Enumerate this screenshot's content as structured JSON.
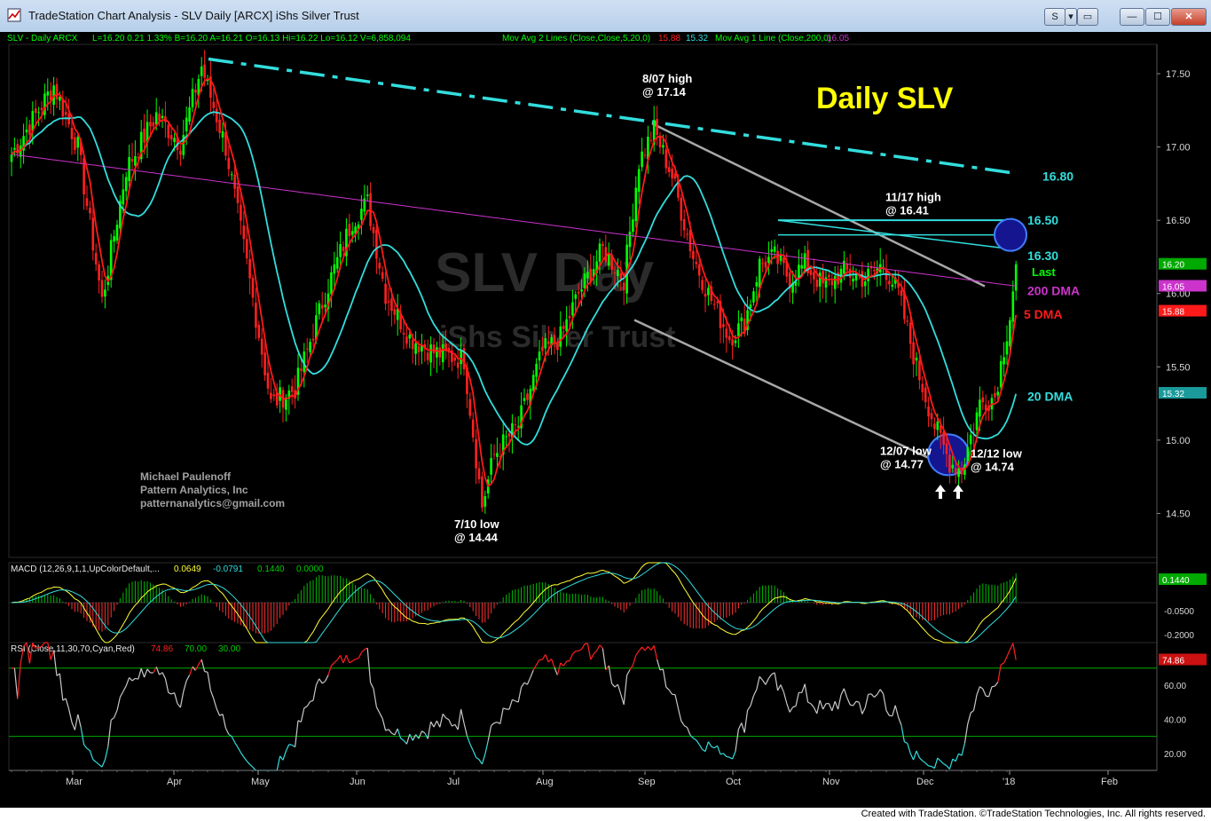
{
  "window": {
    "title": "TradeStation Chart Analysis - SLV Daily [ARCX] iShs Silver Trust",
    "buttons": {
      "style": "S",
      "dropdown": "▾",
      "flag": "▭",
      "minimize": "—",
      "maximize": "☐",
      "close": "✕"
    }
  },
  "header": {
    "symbol_text": "SLV - Daily  ARCX",
    "quote_text": "L=16.20  0.21  1.33%  B=16.20  A=16.21  O=16.13  Hi=16.22  Lo=16.12  V=6,858,094",
    "ma2_label": "Mov Avg 2 Lines (Close,Close,5,20,0)",
    "ma2_v1": "15.88",
    "ma2_v2": "15.32",
    "ma1_label": "Mov Avg 1 Line (Close,200,0)",
    "ma1_v": "16.05"
  },
  "colors": {
    "up": "#00ff00",
    "down": "#ff2020",
    "ma5": "#ff1a1a",
    "ma20": "#33dddd",
    "ma200": "#cc33cc",
    "trendline": "#33dddd",
    "channel": "#a8a8a8",
    "circle_fill": "#151590",
    "circle_stroke": "#3f7fff",
    "annotation": "#ffffff",
    "title": "#ffff00",
    "macd_line": "#ffff33",
    "macd_signal": "#33dddd",
    "rsi": "#c8c8c8",
    "rsi_ob": "#ff2020",
    "rsi_os": "#33dddd",
    "ref_line": "#00aa00"
  },
  "watermark": {
    "symbol": "SLV Day",
    "name": "iShs Silver Trust"
  },
  "chart_data": {
    "type": "candlestick",
    "title": "Daily SLV",
    "price_axis": {
      "range": [
        14.2,
        17.7
      ],
      "ticks": [
        "17.50",
        "17.00",
        "16.50",
        "16.00",
        "15.50",
        "15.00",
        "14.50"
      ]
    },
    "time_axis": {
      "months": [
        "Mar",
        "Apr",
        "May",
        "Jun",
        "Jul",
        "Aug",
        "Sep",
        "Oct",
        "Nov",
        "Dec",
        "'18",
        "Feb"
      ]
    },
    "last_values": {
      "last": "16.20",
      "ma200": "16.05",
      "ma5": "15.88",
      "ma20": "15.32"
    },
    "key_points": [
      {
        "label": "8/07 high",
        "value": "@ 17.14"
      },
      {
        "label": "11/17 high",
        "value": "@ 16.41"
      },
      {
        "label": "7/10 low",
        "value": "@ 14.44"
      },
      {
        "label": "12/07 low",
        "value": "@ 14.77"
      },
      {
        "label": "12/12 low",
        "value": "@ 14.74"
      }
    ],
    "levels": [
      {
        "label": "16.80"
      },
      {
        "label": "16.50"
      },
      {
        "label": "16.30"
      },
      {
        "label": "Last"
      },
      {
        "label": "200 DMA"
      },
      {
        "label": "5 DMA"
      },
      {
        "label": "20 DMA"
      }
    ],
    "anchors": [
      [
        0,
        16.95
      ],
      [
        14,
        17.42
      ],
      [
        22,
        17.0
      ],
      [
        30,
        15.95
      ],
      [
        38,
        16.85
      ],
      [
        48,
        17.22
      ],
      [
        56,
        17.02
      ],
      [
        63,
        17.55
      ],
      [
        71,
        17.0
      ],
      [
        78,
        16.2
      ],
      [
        86,
        15.25
      ],
      [
        94,
        15.35
      ],
      [
        104,
        16.0
      ],
      [
        113,
        16.5
      ],
      [
        118,
        16.62
      ],
      [
        124,
        16.0
      ],
      [
        132,
        15.7
      ],
      [
        140,
        15.6
      ],
      [
        150,
        15.55
      ],
      [
        156,
        14.55
      ],
      [
        160,
        14.9
      ],
      [
        168,
        15.1
      ],
      [
        176,
        15.6
      ],
      [
        182,
        15.7
      ],
      [
        188,
        16.0
      ],
      [
        196,
        16.3
      ],
      [
        203,
        16.1
      ],
      [
        208,
        16.9
      ],
      [
        213,
        17.12
      ],
      [
        219,
        16.8
      ],
      [
        226,
        16.25
      ],
      [
        231,
        16.0
      ],
      [
        238,
        15.7
      ],
      [
        243,
        15.8
      ],
      [
        248,
        16.2
      ],
      [
        253,
        16.25
      ],
      [
        258,
        16.1
      ],
      [
        263,
        16.2
      ],
      [
        269,
        16.05
      ],
      [
        276,
        16.15
      ],
      [
        283,
        16.1
      ],
      [
        289,
        16.2
      ],
      [
        294,
        16.0
      ],
      [
        300,
        15.5
      ],
      [
        306,
        15.1
      ],
      [
        311,
        14.85
      ],
      [
        315,
        14.8
      ],
      [
        321,
        15.25
      ],
      [
        326,
        15.3
      ],
      [
        331,
        15.85
      ],
      [
        333,
        16.2
      ]
    ],
    "macd": {
      "label": "MACD (12,26,9,1,1,UpColorDefault,...",
      "values": [
        "0.0649",
        "-0.0791",
        "0.1440",
        "0.0000"
      ],
      "axis_labels": [
        "0.1440",
        "-0.0500",
        "-0.2000"
      ],
      "range": [
        -0.25,
        0.25
      ]
    },
    "rsi": {
      "label": "RSI (Close,11,30,70,Cyan,Red)",
      "values": [
        "74.86",
        "70.00",
        "30.00"
      ],
      "axis_labels": [
        "74.86",
        "60.00",
        "40.00",
        "20.00"
      ],
      "range": [
        10,
        85
      ],
      "overbought": 70,
      "oversold": 30
    }
  },
  "author": {
    "name": "Michael Paulenoff",
    "company": "Pattern Analytics, Inc",
    "email": "patternanalytics@gmail.com"
  },
  "footer": {
    "credit": "Created with TradeStation. ©TradeStation Technologies, Inc. All rights reserved."
  }
}
